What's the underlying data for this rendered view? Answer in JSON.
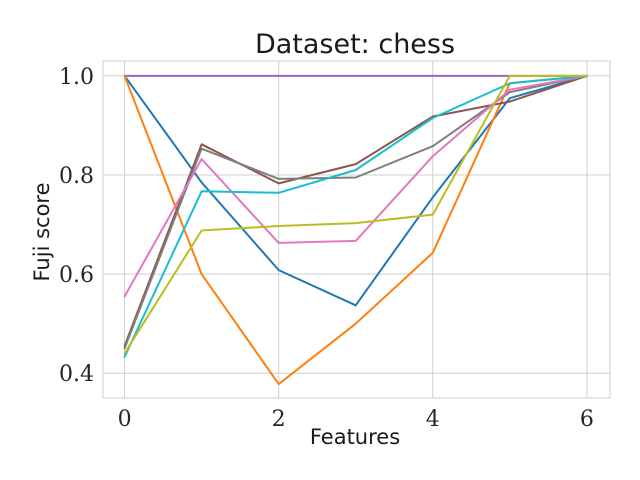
{
  "chart_data": {
    "type": "line",
    "title": "Dataset: chess",
    "xlabel": "Features",
    "ylabel": "Fuji score",
    "x": [
      0,
      1,
      2,
      3,
      4,
      5,
      6
    ],
    "xlim": [
      -0.28,
      6.3
    ],
    "ylim": [
      0.35,
      1.03
    ],
    "xticks": [
      0,
      2,
      4,
      6
    ],
    "yticks": [
      0.4,
      0.6,
      0.8,
      1.0
    ],
    "ytick_labels": [
      "0.4",
      "0.6",
      "0.8",
      "1.0"
    ],
    "grid": true,
    "series": [
      {
        "color": "#9467bd",
        "values": [
          1.0,
          1.0,
          1.0,
          1.0,
          1.0,
          1.0,
          1.0
        ]
      },
      {
        "color": "#1f77b4",
        "values": [
          1.0,
          0.785,
          0.608,
          0.537,
          0.755,
          0.955,
          1.0
        ]
      },
      {
        "color": "#ff7f0e",
        "values": [
          1.0,
          0.6,
          0.378,
          0.5,
          0.643,
          0.985,
          1.0
        ]
      },
      {
        "color": "#8c564b",
        "values": [
          0.455,
          0.862,
          0.783,
          0.822,
          0.918,
          0.948,
          1.0
        ]
      },
      {
        "color": "#7f7f7f",
        "values": [
          0.45,
          0.853,
          0.792,
          0.795,
          0.858,
          0.967,
          1.0
        ]
      },
      {
        "color": "#e377c2",
        "values": [
          0.555,
          0.832,
          0.663,
          0.667,
          0.838,
          0.972,
          1.0
        ]
      },
      {
        "color": "#17becf",
        "values": [
          0.433,
          0.767,
          0.764,
          0.81,
          0.915,
          0.985,
          1.0
        ]
      },
      {
        "color": "#bcbd22",
        "values": [
          0.44,
          0.688,
          0.697,
          0.703,
          0.72,
          1.0,
          1.0
        ]
      }
    ]
  }
}
